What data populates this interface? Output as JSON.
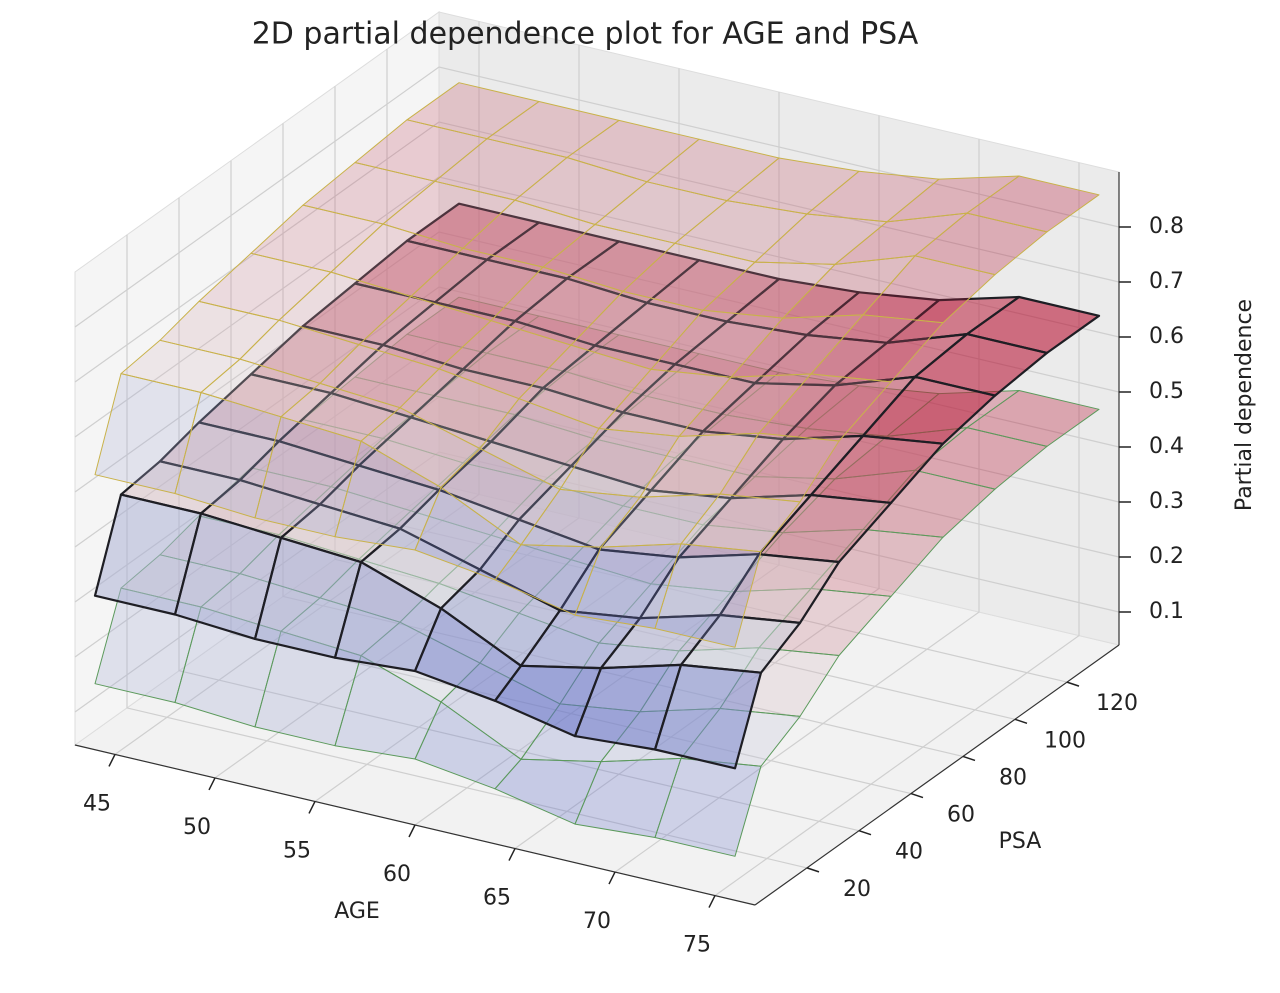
{
  "chart_data": {
    "type": "surface3d",
    "title": "2D partial dependence plot for AGE and PSA",
    "x_label": "AGE",
    "y_label": "PSA",
    "z_label": "Partial dependence",
    "xlim": [
      43,
      77
    ],
    "ylim": [
      0,
      140
    ],
    "zlim": [
      0.04,
      0.9
    ],
    "xticks": [
      45,
      50,
      55,
      60,
      65,
      70,
      75
    ],
    "yticks": [
      20,
      40,
      60,
      80,
      100,
      120
    ],
    "zticks": [
      0.1,
      0.2,
      0.3,
      0.4,
      0.5,
      0.6,
      0.7,
      0.8
    ],
    "grid": true,
    "colormap": "coolwarm",
    "x": [
      44,
      48,
      52,
      56,
      60,
      64,
      68,
      72,
      76
    ],
    "y": [
      0,
      10,
      25,
      40,
      60,
      80,
      100,
      120,
      140
    ],
    "surfaces": [
      {
        "edgecolor": "#5c9a5c",
        "alpha": 0.3,
        "linewidth": 1,
        "z": [
          [
            0.16,
            0.16,
            0.15,
            0.15,
            0.16,
            0.14,
            0.11,
            0.12,
            0.12
          ],
          [
            0.3,
            0.3,
            0.29,
            0.28,
            0.23,
            0.16,
            0.19,
            0.23,
            0.25
          ],
          [
            0.31,
            0.31,
            0.3,
            0.29,
            0.25,
            0.21,
            0.23,
            0.27,
            0.29
          ],
          [
            0.33,
            0.33,
            0.32,
            0.31,
            0.29,
            0.27,
            0.29,
            0.33,
            0.35
          ],
          [
            0.35,
            0.35,
            0.34,
            0.33,
            0.32,
            0.31,
            0.33,
            0.37,
            0.39
          ],
          [
            0.37,
            0.37,
            0.36,
            0.36,
            0.35,
            0.35,
            0.37,
            0.41,
            0.43
          ],
          [
            0.38,
            0.38,
            0.38,
            0.37,
            0.37,
            0.37,
            0.4,
            0.45,
            0.45
          ],
          [
            0.39,
            0.39,
            0.39,
            0.38,
            0.38,
            0.39,
            0.41,
            0.46,
            0.46
          ],
          [
            0.39,
            0.39,
            0.39,
            0.39,
            0.39,
            0.4,
            0.42,
            0.46,
            0.46
          ]
        ]
      },
      {
        "edgecolor": "#c9b24a",
        "alpha": 0.28,
        "linewidth": 1,
        "z": [
          [
            0.54,
            0.54,
            0.53,
            0.53,
            0.54,
            0.52,
            0.49,
            0.5,
            0.5
          ],
          [
            0.69,
            0.69,
            0.68,
            0.67,
            0.62,
            0.55,
            0.58,
            0.62,
            0.64
          ],
          [
            0.7,
            0.7,
            0.69,
            0.68,
            0.64,
            0.6,
            0.62,
            0.66,
            0.68
          ],
          [
            0.72,
            0.72,
            0.71,
            0.7,
            0.68,
            0.66,
            0.68,
            0.72,
            0.74
          ],
          [
            0.74,
            0.74,
            0.73,
            0.72,
            0.71,
            0.7,
            0.72,
            0.76,
            0.78
          ],
          [
            0.76,
            0.76,
            0.75,
            0.75,
            0.74,
            0.74,
            0.76,
            0.8,
            0.82
          ],
          [
            0.77,
            0.77,
            0.77,
            0.76,
            0.76,
            0.76,
            0.79,
            0.84,
            0.84
          ],
          [
            0.78,
            0.78,
            0.78,
            0.77,
            0.77,
            0.78,
            0.8,
            0.85,
            0.85
          ],
          [
            0.78,
            0.78,
            0.78,
            0.78,
            0.78,
            0.79,
            0.81,
            0.85,
            0.85
          ]
        ]
      },
      {
        "edgecolor": "#1e1e24",
        "alpha": 0.55,
        "linewidth": 2.2,
        "z": [
          [
            0.32,
            0.32,
            0.31,
            0.31,
            0.32,
            0.3,
            0.27,
            0.28,
            0.28
          ],
          [
            0.47,
            0.47,
            0.46,
            0.45,
            0.4,
            0.33,
            0.36,
            0.4,
            0.42
          ],
          [
            0.48,
            0.48,
            0.47,
            0.46,
            0.42,
            0.38,
            0.4,
            0.44,
            0.46
          ],
          [
            0.5,
            0.5,
            0.49,
            0.48,
            0.46,
            0.44,
            0.46,
            0.5,
            0.52
          ],
          [
            0.52,
            0.52,
            0.51,
            0.5,
            0.49,
            0.48,
            0.5,
            0.54,
            0.56
          ],
          [
            0.54,
            0.54,
            0.53,
            0.53,
            0.52,
            0.52,
            0.54,
            0.58,
            0.6
          ],
          [
            0.55,
            0.55,
            0.55,
            0.54,
            0.54,
            0.54,
            0.57,
            0.62,
            0.62
          ],
          [
            0.56,
            0.56,
            0.56,
            0.55,
            0.55,
            0.56,
            0.58,
            0.63,
            0.63
          ],
          [
            0.56,
            0.56,
            0.56,
            0.56,
            0.56,
            0.57,
            0.59,
            0.63,
            0.63
          ]
        ]
      }
    ]
  }
}
